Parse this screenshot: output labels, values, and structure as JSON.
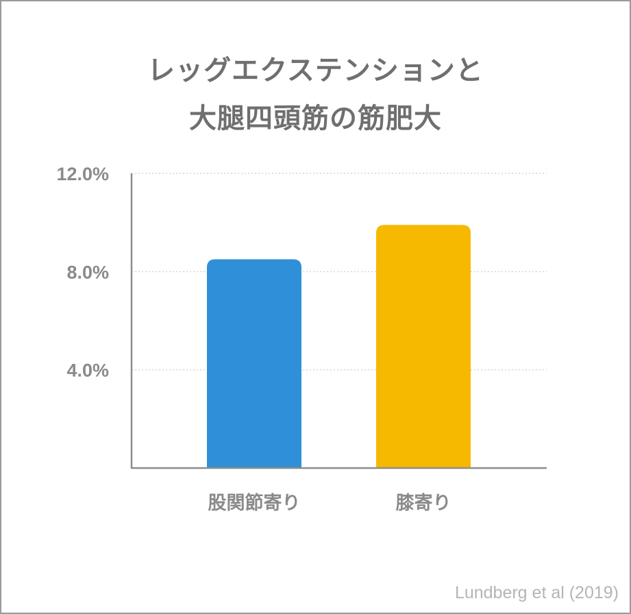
{
  "chart_data": {
    "type": "bar",
    "title_lines": [
      "レッグエクステンションと",
      "大腿四頭筋の筋肥大"
    ],
    "categories": [
      "股関節寄り",
      "膝寄り"
    ],
    "values": [
      8.5,
      9.9
    ],
    "colors": [
      "#2f90d9",
      "#f7b800"
    ],
    "ylim": [
      0,
      12
    ],
    "yticks": [
      4,
      8,
      12
    ],
    "ytick_labels": [
      "4.0%",
      "8.0%",
      "12.0%"
    ],
    "xlabel": "",
    "ylabel": "",
    "grid": true,
    "legend": "none"
  },
  "source": "Lundberg et al (2019)",
  "style": {
    "axis_color": "#8c8c8c",
    "grid_color": "#d5d5d5",
    "text_color": "#6f6f6f"
  }
}
